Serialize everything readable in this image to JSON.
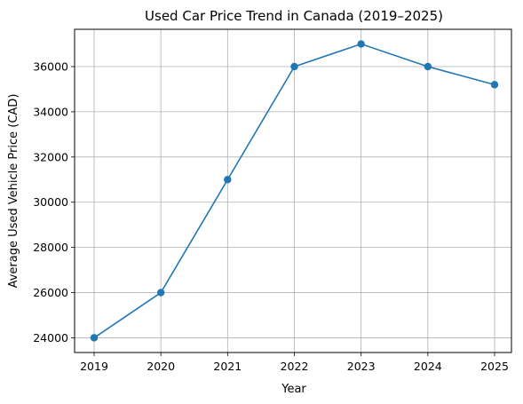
{
  "chart_data": {
    "type": "line",
    "title": "Used Car Price Trend in Canada (2019–2025)",
    "xlabel": "Year",
    "ylabel": "Average Used Vehicle Price (CAD)",
    "x": [
      "2019",
      "2020",
      "2021",
      "2022",
      "2023",
      "2024",
      "2025"
    ],
    "series": [
      {
        "values": [
          24000,
          26000,
          31000,
          36000,
          37000,
          36000,
          35200
        ]
      }
    ],
    "yticks": [
      24000,
      26000,
      28000,
      30000,
      32000,
      34000,
      36000
    ],
    "ylim": [
      23350,
      37650
    ],
    "grid": true,
    "line_color": "#1f77b4"
  }
}
